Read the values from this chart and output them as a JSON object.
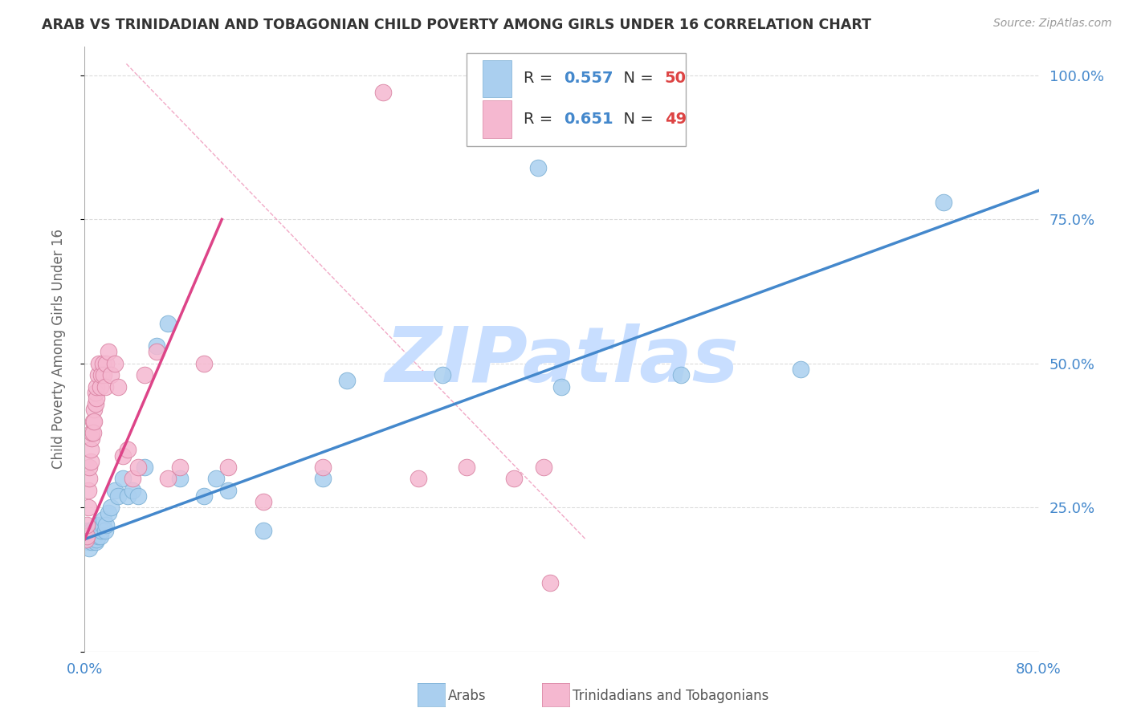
{
  "title": "ARAB VS TRINIDADIAN AND TOBAGONIAN CHILD POVERTY AMONG GIRLS UNDER 16 CORRELATION CHART",
  "source": "Source: ZipAtlas.com",
  "ylabel": "Child Poverty Among Girls Under 16",
  "watermark": "ZIPatlas",
  "xlim": [
    0.0,
    0.8
  ],
  "ylim": [
    0.0,
    1.05
  ],
  "x_ticks": [
    0.0,
    0.2,
    0.4,
    0.6,
    0.8
  ],
  "y_ticks_right": [
    0.0,
    0.25,
    0.5,
    0.75,
    1.0
  ],
  "y_tick_labels_right": [
    "",
    "25.0%",
    "50.0%",
    "75.0%",
    "100.0%"
  ],
  "arab_R": 0.557,
  "arab_N": 50,
  "tnt_R": 0.651,
  "tnt_N": 49,
  "arab_color": "#AACFEF",
  "arab_edge_color": "#7AAFD4",
  "tnt_color": "#F5B8D0",
  "tnt_edge_color": "#D880A0",
  "blue_line_color": "#4488CC",
  "pink_line_color": "#DD4488",
  "ref_line_color": "#F0A0C0",
  "grid_color": "#CCCCCC",
  "axis_color": "#4488CC",
  "title_color": "#333333",
  "watermark_color": "#C8DEFF",
  "arab_x": [
    0.001,
    0.002,
    0.003,
    0.003,
    0.004,
    0.004,
    0.005,
    0.005,
    0.006,
    0.006,
    0.007,
    0.007,
    0.008,
    0.008,
    0.009,
    0.009,
    0.01,
    0.01,
    0.011,
    0.012,
    0.013,
    0.014,
    0.015,
    0.016,
    0.017,
    0.018,
    0.02,
    0.022,
    0.025,
    0.028,
    0.032,
    0.036,
    0.04,
    0.045,
    0.05,
    0.06,
    0.07,
    0.08,
    0.1,
    0.11,
    0.12,
    0.15,
    0.2,
    0.22,
    0.3,
    0.38,
    0.4,
    0.5,
    0.6,
    0.72
  ],
  "arab_y": [
    0.195,
    0.2,
    0.19,
    0.21,
    0.18,
    0.2,
    0.195,
    0.205,
    0.19,
    0.21,
    0.2,
    0.195,
    0.2,
    0.21,
    0.195,
    0.19,
    0.195,
    0.205,
    0.2,
    0.22,
    0.2,
    0.21,
    0.22,
    0.23,
    0.21,
    0.22,
    0.24,
    0.25,
    0.28,
    0.27,
    0.3,
    0.27,
    0.28,
    0.27,
    0.32,
    0.53,
    0.57,
    0.3,
    0.27,
    0.3,
    0.28,
    0.21,
    0.3,
    0.47,
    0.48,
    0.84,
    0.46,
    0.48,
    0.49,
    0.78
  ],
  "tnt_x": [
    0.001,
    0.002,
    0.002,
    0.003,
    0.003,
    0.004,
    0.004,
    0.005,
    0.005,
    0.006,
    0.006,
    0.007,
    0.007,
    0.008,
    0.008,
    0.009,
    0.009,
    0.01,
    0.01,
    0.011,
    0.012,
    0.013,
    0.014,
    0.015,
    0.016,
    0.017,
    0.018,
    0.02,
    0.022,
    0.025,
    0.028,
    0.032,
    0.036,
    0.04,
    0.045,
    0.05,
    0.06,
    0.07,
    0.08,
    0.1,
    0.12,
    0.15,
    0.2,
    0.25,
    0.28,
    0.32,
    0.36,
    0.385,
    0.39
  ],
  "tnt_y": [
    0.195,
    0.2,
    0.22,
    0.25,
    0.28,
    0.3,
    0.32,
    0.33,
    0.35,
    0.37,
    0.38,
    0.4,
    0.38,
    0.42,
    0.4,
    0.43,
    0.45,
    0.44,
    0.46,
    0.48,
    0.5,
    0.46,
    0.48,
    0.5,
    0.48,
    0.46,
    0.5,
    0.52,
    0.48,
    0.5,
    0.46,
    0.34,
    0.35,
    0.3,
    0.32,
    0.48,
    0.52,
    0.3,
    0.32,
    0.5,
    0.32,
    0.26,
    0.32,
    0.97,
    0.3,
    0.32,
    0.3,
    0.32,
    0.12
  ],
  "blue_line_x0": 0.0,
  "blue_line_x1": 0.8,
  "blue_line_y0": 0.195,
  "blue_line_y1": 0.8,
  "pink_line_x0": 0.0,
  "pink_line_x1": 0.115,
  "pink_line_y0": 0.195,
  "pink_line_y1": 0.75,
  "ref_line_x0": 0.035,
  "ref_line_x1": 0.42,
  "ref_line_y0": 1.02,
  "ref_line_y1": 0.195
}
